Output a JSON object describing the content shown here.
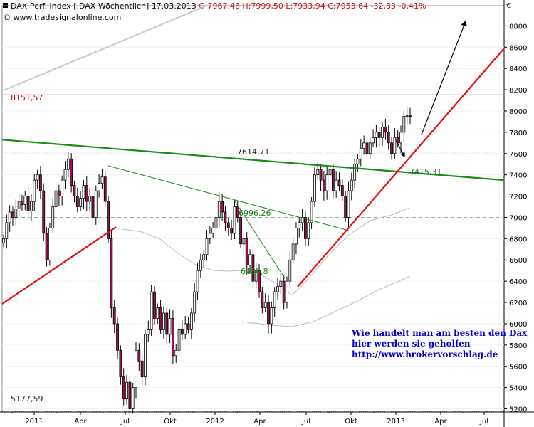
{
  "header": {
    "symbol": "DAX Perf. Index [.DAX  Wöchentlich]",
    "date": "17.03.2013",
    "ohlc": "O:7967,46 H:7999,50 L:7933,94 C:7953,64 -32,83 -0,41%",
    "source": "© www.tradesignalonline.com"
  },
  "currency_symbol": "€",
  "annotation": {
    "lines": [
      "Wie handelt man am besten  den Dax",
      "hier werden sie geholfen",
      "http://www.brokervorschlag.de"
    ]
  },
  "colors": {
    "bull": "#ffffff",
    "bear": "#9a1050",
    "up_trend": "#e01010",
    "down_trend": "#1a8a1a",
    "level": "#cc0000",
    "support": "#2a8a2a"
  },
  "chart_data": {
    "type": "candlestick",
    "period": "weekly",
    "y_axis": {
      "ticks": [
        5200,
        5400,
        5600,
        5800,
        6000,
        6200,
        6400,
        6600,
        6800,
        7000,
        7200,
        7400,
        7600,
        7800,
        8000,
        8200,
        8400,
        8600,
        8800
      ],
      "range": [
        5170,
        8990
      ]
    },
    "x_axis": {
      "ticks": [
        "2011",
        "Apr",
        "Jul",
        "Okt",
        "2012",
        "Apr",
        "Jul",
        "Okt",
        "2013",
        "Apr",
        "Jul"
      ]
    },
    "level_labels": [
      {
        "text": "8151,57",
        "value": 8151.57,
        "color": "level"
      },
      {
        "text": "7614,71",
        "value": 7614.71,
        "color": "dark"
      },
      {
        "text": "7415,31",
        "value": 7415.31,
        "color": "support"
      },
      {
        "text": "6996,26",
        "value": 6996.26,
        "color": "support"
      },
      {
        "text": "6430,8",
        "value": 6430.8,
        "color": "support"
      },
      {
        "text": "5177,59",
        "value": 5177.59,
        "color": "dark"
      }
    ],
    "closes": [
      6800,
      6950,
      7050,
      7000,
      7080,
      7150,
      7120,
      7200,
      7060,
      7150,
      7350,
      7400,
      7250,
      6850,
      6600,
      6900,
      7100,
      7250,
      7200,
      7350,
      7450,
      7550,
      7300,
      7200,
      7100,
      7180,
      7300,
      7150,
      7200,
      7000,
      7250,
      7320,
      7380,
      7150,
      6800,
      6150,
      6000,
      5750,
      5500,
      5300,
      5450,
      5200,
      5400,
      5750,
      5650,
      5500,
      5900,
      5950,
      6300,
      6050,
      6150,
      5950,
      6100,
      5900,
      6050,
      5700,
      5750,
      5950,
      5900,
      6000,
      5950,
      6100,
      6300,
      6500,
      6600,
      6650,
      6800,
      6850,
      6900,
      7000,
      7150,
      7050,
      6950,
      6900,
      6850,
      7100,
      7000,
      6750,
      6800,
      6550,
      6650,
      6400,
      6500,
      6300,
      6150,
      6200,
      6000,
      6150,
      6300,
      6350,
      6400,
      6200,
      6400,
      6600,
      6750,
      6900,
      6950,
      7000,
      6800,
      6950,
      7150,
      7400,
      7450,
      7350,
      7250,
      7400,
      7450,
      7250,
      7350,
      7300,
      7200,
      7000,
      7250,
      7350,
      7500,
      7550,
      7650,
      7700,
      7600,
      7700,
      7750,
      7800,
      7750,
      7850,
      7800,
      7700,
      7600,
      7750,
      7700,
      7800,
      7950,
      7955,
      7953.64
    ],
    "overlays": {
      "horizontal_levels": [
        8151.57,
        7614.71,
        6996.26,
        6430.8,
        5177.59
      ],
      "trendlines": [
        {
          "name": "long downtrend",
          "from": [
            0,
            7730
          ],
          "to": [
            1,
            7350
          ]
        },
        {
          "name": "falling channel",
          "points": [
            [
              0.223,
              7530
            ],
            [
              0.699,
              6860
            ]
          ]
        },
        {
          "name": "decline 2012",
          "points": [
            [
              0.463,
              7150
            ],
            [
              0.561,
              6400
            ]
          ]
        },
        {
          "name": "rise 2011",
          "points": [
            [
              0,
              6160
            ],
            [
              0.228,
              6920
            ]
          ]
        },
        {
          "name": "rise 2012-2013",
          "points": [
            [
              0.605,
              6320
            ],
            [
              1,
              8670
            ]
          ]
        }
      ],
      "target_arrow": {
        "from": [
          0.853,
          7880
        ],
        "to": [
          0.953,
          8930
        ]
      }
    }
  }
}
